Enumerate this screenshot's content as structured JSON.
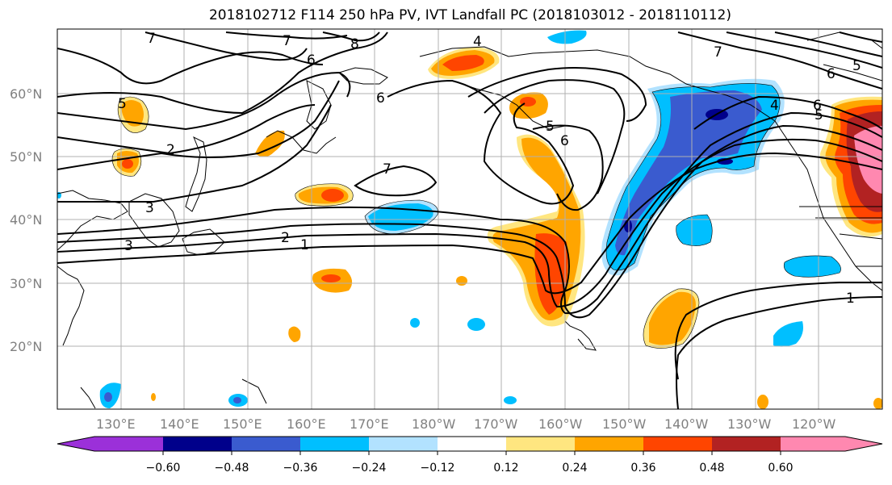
{
  "title": "2018102712 F114 250 hPa PV, IVT Landfall PC (2018103012 - 2018110112)",
  "lat_labels": [
    "60°N",
    "50°N",
    "40°N",
    "30°N",
    "20°N"
  ],
  "lon_labels": [
    "130°E",
    "140°E",
    "150°E",
    "160°E",
    "170°E",
    "180°W",
    "170°W",
    "160°W",
    "150°W",
    "140°W",
    "130°W",
    "120°W"
  ],
  "colorbar": {
    "tick_labels": [
      "−0.60",
      "−0.48",
      "−0.36",
      "−0.24",
      "−0.12",
      "0.12",
      "0.24",
      "0.36",
      "0.48",
      "0.60"
    ],
    "colors": [
      "#9b30d9",
      "#00008b",
      "#3a5bcf",
      "#00bfff",
      "#b2e2ff",
      "#ffffff",
      "#ffe680",
      "#ffa500",
      "#ff4500",
      "#b22222",
      "#ff88b0"
    ]
  },
  "contour_labels": [
    "7",
    "7",
    "8",
    "4",
    "7",
    "5",
    "6",
    "6",
    "6",
    "6",
    "5",
    "4",
    "5",
    "5",
    "6",
    "2",
    "7",
    "3",
    "3",
    "2",
    "1",
    "1"
  ]
}
